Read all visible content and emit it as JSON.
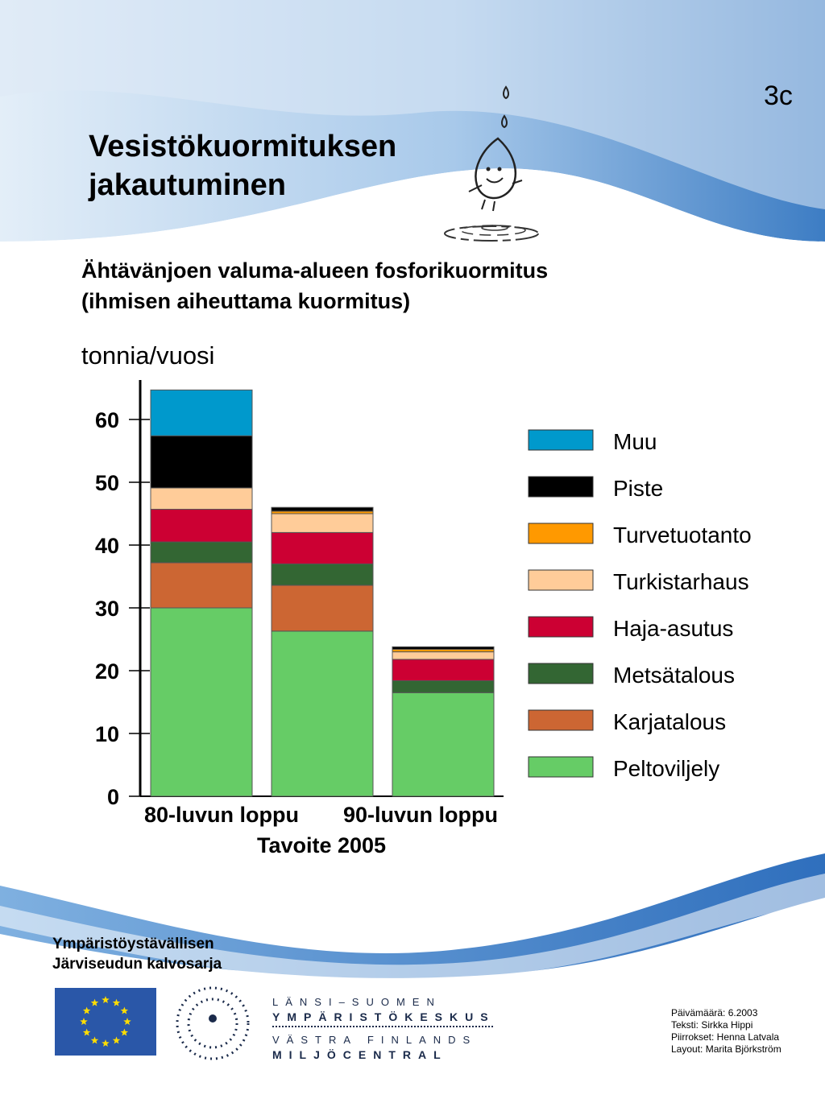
{
  "slide_number": "3c",
  "title_lines": [
    "Vesistökuormituksen",
    "jakautuminen"
  ],
  "subtitle_lines": [
    "Ähtävänjoen valuma-alueen fosforikuormitus",
    "(ihmisen aiheuttama kuormitus)"
  ],
  "footer": {
    "series_lines": [
      "Ympäristöystävällisen",
      "Järviseudun kalvosarja"
    ],
    "credits": [
      "Päivämäärä: 6.2003",
      "Teksti: Sirkka Hippi",
      "Piirrokset: Henna Latvala",
      "Layout: Marita Björkström"
    ],
    "logo_lines": [
      "LÄNSI–SUOMEN",
      "YMPÄRISTÖKESKUS",
      "VÄSTRA FINLANDS",
      "MILJÖCENTRAL"
    ]
  },
  "chart_data": {
    "type": "bar",
    "stacked": true,
    "ylabel": "tonnia/vuosi",
    "ylim": [
      0,
      65
    ],
    "yticks": [
      0,
      10,
      20,
      30,
      40,
      50,
      60
    ],
    "categories": [
      "80-luvun loppu",
      "90-luvun loppu",
      "Tavoite 2005"
    ],
    "series": [
      {
        "name": "Peltoviljely",
        "color": "#66cc66",
        "values": [
          30.0,
          26.3,
          16.5
        ]
      },
      {
        "name": "Karjatalous",
        "color": "#cc6633",
        "values": [
          7.2,
          7.3,
          0.0
        ]
      },
      {
        "name": "Metsätalous",
        "color": "#336633",
        "values": [
          3.3,
          3.4,
          1.9
        ]
      },
      {
        "name": "Haja-asutus",
        "color": "#cc0033",
        "values": [
          5.2,
          5.0,
          3.4
        ]
      },
      {
        "name": "Turkistarhaus",
        "color": "#ffcc99",
        "values": [
          3.4,
          3.0,
          1.2
        ]
      },
      {
        "name": "Turvetuotanto",
        "color": "#ff9900",
        "values": [
          0.0,
          0.4,
          0.4
        ]
      },
      {
        "name": "Piste",
        "color": "#000000",
        "values": [
          8.3,
          0.6,
          0.4
        ]
      },
      {
        "name": "Muu",
        "color": "#0099cc",
        "values": [
          7.3,
          0.0,
          0.0
        ]
      }
    ],
    "legend_order": [
      "Muu",
      "Piste",
      "Turvetuotanto",
      "Turkistarhaus",
      "Haja-asutus",
      "Metsätalous",
      "Karjatalous",
      "Peltoviljely"
    ],
    "legend_position": "right"
  }
}
